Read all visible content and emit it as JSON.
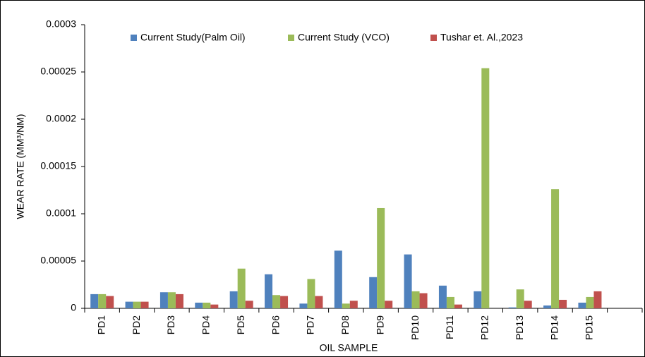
{
  "chart_data": {
    "type": "bar",
    "xlabel": "OIL SAMPLE",
    "ylabel": "WEAR RATE (MM³/NM)",
    "categories": [
      "PD1",
      "PD2",
      "PD3",
      "PD4",
      "PD5",
      "PD6",
      "PD7",
      "PD8",
      "PD9",
      "PD10",
      "PD11",
      "PD12",
      "PD13",
      "PD14",
      "PD15",
      null
    ],
    "series": [
      {
        "name": "Current Study(Palm Oil)",
        "color": "#4f81bd",
        "values": [
          1.5e-05,
          7e-06,
          1.7e-05,
          6e-06,
          1.8e-05,
          3.6e-05,
          5e-06,
          6.1e-05,
          3.3e-05,
          5.7e-05,
          2.4e-05,
          1.8e-05,
          1e-06,
          3e-06,
          6e-06,
          null
        ]
      },
      {
        "name": "Current Study (VCO)",
        "color": "#9bbb59",
        "values": [
          1.5e-05,
          7e-06,
          1.7e-05,
          6e-06,
          4.2e-05,
          1.4e-05,
          3.1e-05,
          5e-06,
          0.000106,
          1.8e-05,
          1.2e-05,
          0.000254,
          2e-05,
          0.000126,
          1.2e-05,
          null
        ]
      },
      {
        "name": "Tushar et. Al.,2023",
        "color": "#c0504d",
        "values": [
          1.3e-05,
          7e-06,
          1.5e-05,
          4e-06,
          8e-06,
          1.3e-05,
          1.3e-05,
          8e-06,
          8e-06,
          1.6e-05,
          4e-06,
          0,
          8e-06,
          9e-06,
          1.8e-05,
          null
        ]
      }
    ],
    "ylim": [
      0,
      0.0003
    ],
    "yticks": [
      0,
      {
        "value": 5e-05,
        "label": "0.00005"
      },
      0.0001,
      0.00015,
      0.0002,
      0.00025,
      0.0003
    ],
    "legend": "top"
  }
}
